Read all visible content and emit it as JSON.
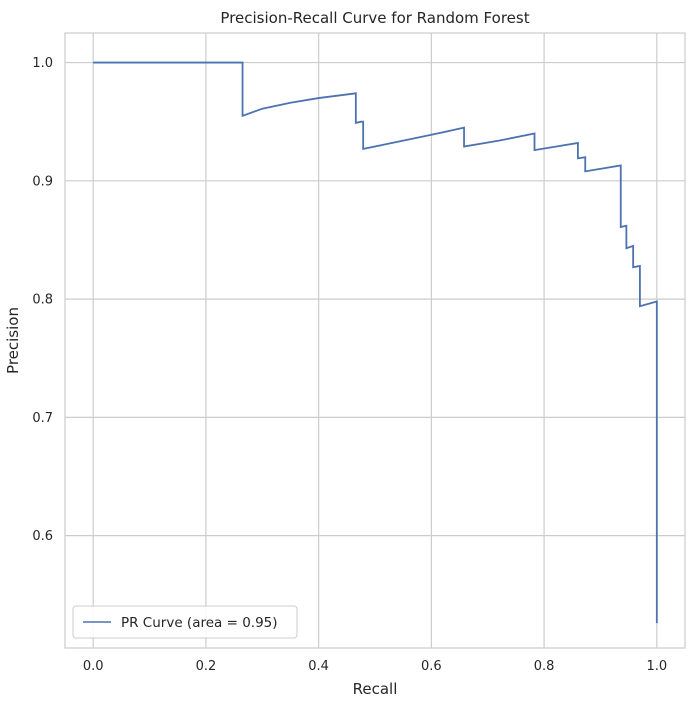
{
  "chart_data": {
    "type": "line",
    "title": "Precision-Recall Curve for Random Forest",
    "xlabel": "Recall",
    "ylabel": "Precision",
    "xlim": [
      -0.05,
      1.05
    ],
    "ylim": [
      0.505,
      1.025
    ],
    "grid": true,
    "legend_position": "lower-left",
    "x_ticks": [
      {
        "value": 0.0,
        "label": "0.0"
      },
      {
        "value": 0.2,
        "label": "0.2"
      },
      {
        "value": 0.4,
        "label": "0.4"
      },
      {
        "value": 0.6,
        "label": "0.6"
      },
      {
        "value": 0.8,
        "label": "0.8"
      },
      {
        "value": 1.0,
        "label": "1.0"
      }
    ],
    "y_ticks": [
      {
        "value": 0.6,
        "label": "0.6"
      },
      {
        "value": 0.7,
        "label": "0.7"
      },
      {
        "value": 0.8,
        "label": "0.8"
      },
      {
        "value": 0.9,
        "label": "0.9"
      },
      {
        "value": 1.0,
        "label": "1.0"
      }
    ],
    "series": [
      {
        "name": "PR Curve (area = 0.95)",
        "color": "#4c72b0",
        "points": [
          [
            0.0,
            1.0
          ],
          [
            0.265,
            1.0
          ],
          [
            0.265,
            0.955
          ],
          [
            0.3,
            0.961
          ],
          [
            0.35,
            0.966
          ],
          [
            0.4,
            0.97
          ],
          [
            0.466,
            0.974
          ],
          [
            0.466,
            0.949
          ],
          [
            0.475,
            0.95
          ],
          [
            0.479,
            0.95
          ],
          [
            0.479,
            0.927
          ],
          [
            0.52,
            0.931
          ],
          [
            0.58,
            0.937
          ],
          [
            0.62,
            0.941
          ],
          [
            0.658,
            0.945
          ],
          [
            0.658,
            0.929
          ],
          [
            0.72,
            0.934
          ],
          [
            0.783,
            0.94
          ],
          [
            0.783,
            0.926
          ],
          [
            0.86,
            0.932
          ],
          [
            0.86,
            0.919
          ],
          [
            0.873,
            0.92
          ],
          [
            0.873,
            0.908
          ],
          [
            0.936,
            0.913
          ],
          [
            0.936,
            0.861
          ],
          [
            0.946,
            0.862
          ],
          [
            0.946,
            0.843
          ],
          [
            0.958,
            0.845
          ],
          [
            0.958,
            0.827
          ],
          [
            0.97,
            0.828
          ],
          [
            0.97,
            0.794
          ],
          [
            1.0,
            0.798
          ],
          [
            1.0,
            0.526
          ]
        ]
      }
    ]
  }
}
